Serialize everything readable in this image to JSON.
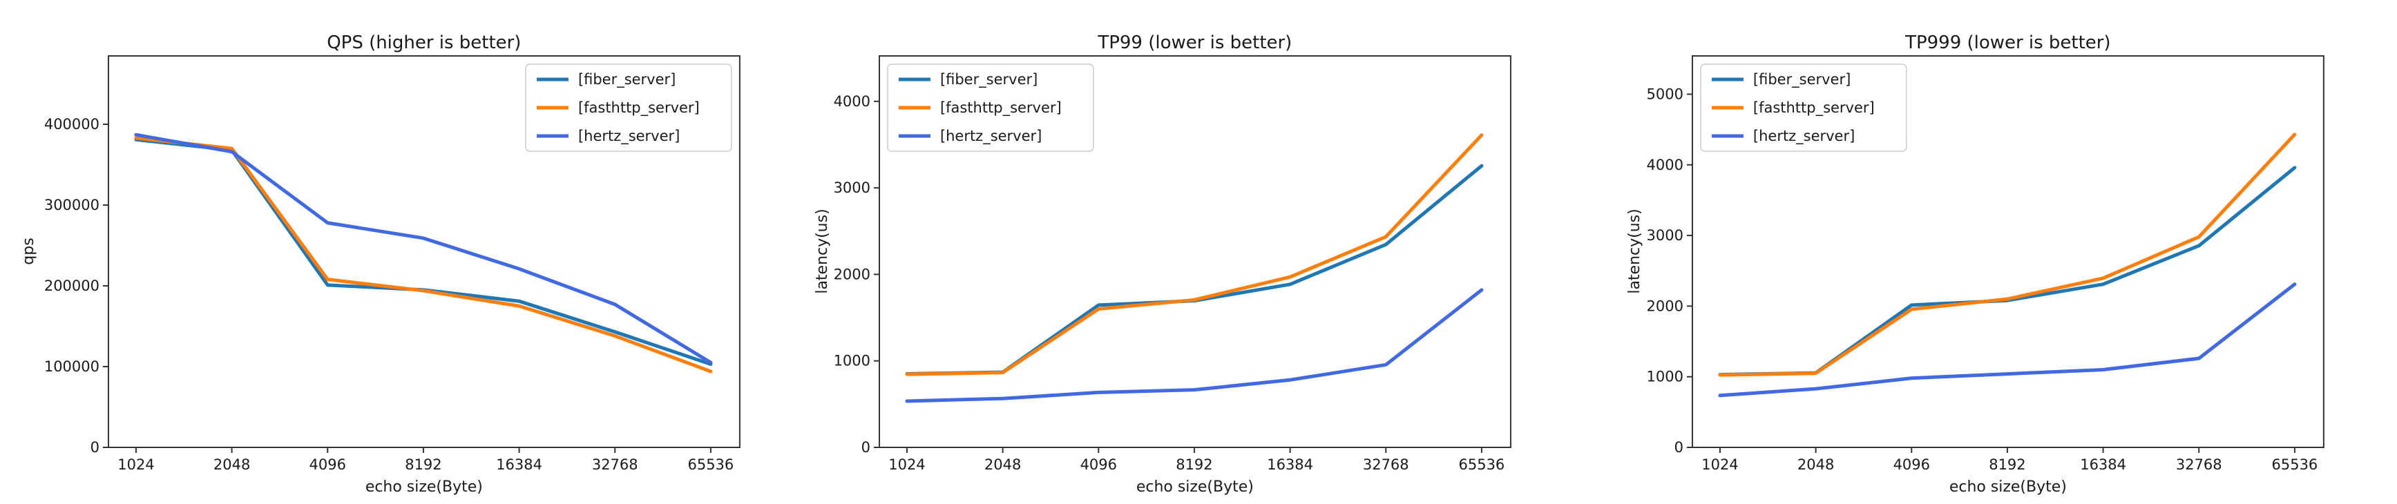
{
  "figure": {
    "background": "#ffffff"
  },
  "colors": {
    "fiber": "#1f77b4",
    "fasthttp": "#ff7f0e",
    "hertz": "#4169e1",
    "spine": "#333333",
    "text": "#1a1a1a",
    "legend_border": "#cccccc",
    "legend_fill": "#ffffff"
  },
  "chart_data": [
    {
      "type": "line",
      "title": "QPS (higher is better)",
      "xlabel": "echo size(Byte)",
      "ylabel": "qps",
      "categories": [
        "1024",
        "2048",
        "4096",
        "8192",
        "16384",
        "32768",
        "65536"
      ],
      "yticks": [
        0,
        100000,
        200000,
        300000,
        400000
      ],
      "ytick_labels": [
        "0",
        "100000",
        "200000",
        "300000",
        "400000"
      ],
      "ylim": [
        0,
        484600
      ],
      "grid": false,
      "legend_position": "upper-right",
      "series": [
        {
          "name": "[fiber_server]",
          "color_key": "fiber",
          "values": [
            381000,
            368000,
            201000,
            195000,
            181000,
            143000,
            103000
          ]
        },
        {
          "name": "[fasthttp_server]",
          "color_key": "fasthttp",
          "values": [
            383000,
            370000,
            208000,
            194000,
            175000,
            138000,
            94000
          ]
        },
        {
          "name": "[hertz_server]",
          "color_key": "hertz",
          "values": [
            387000,
            366000,
            278000,
            259000,
            221000,
            177000,
            105000
          ]
        }
      ]
    },
    {
      "type": "line",
      "title": "TP99 (lower is better)",
      "xlabel": "echo size(Byte)",
      "ylabel": "latency(us)",
      "categories": [
        "1024",
        "2048",
        "4096",
        "8192",
        "16384",
        "32768",
        "65536"
      ],
      "yticks": [
        0,
        1000,
        2000,
        3000,
        4000
      ],
      "ytick_labels": [
        "0",
        "1000",
        "2000",
        "3000",
        "4000"
      ],
      "ylim": [
        0,
        4525
      ],
      "grid": false,
      "legend_position": "upper-left",
      "series": [
        {
          "name": "[fiber_server]",
          "color_key": "fiber",
          "values": [
            850,
            870,
            1645,
            1695,
            1885,
            2345,
            3255
          ]
        },
        {
          "name": "[fasthttp_server]",
          "color_key": "fasthttp",
          "values": [
            845,
            865,
            1600,
            1705,
            1970,
            2435,
            3610
          ]
        },
        {
          "name": "[hertz_server]",
          "color_key": "hertz",
          "values": [
            535,
            565,
            635,
            665,
            780,
            955,
            1820
          ]
        }
      ]
    },
    {
      "type": "line",
      "title": "TP999 (lower is better)",
      "xlabel": "echo size(Byte)",
      "ylabel": "latency(us)",
      "categories": [
        "1024",
        "2048",
        "4096",
        "8192",
        "16384",
        "32768",
        "65536"
      ],
      "yticks": [
        0,
        1000,
        2000,
        3000,
        4000,
        5000
      ],
      "ytick_labels": [
        "0",
        "1000",
        "2000",
        "3000",
        "4000",
        "5000"
      ],
      "ylim": [
        0,
        5542
      ],
      "grid": false,
      "legend_position": "upper-left",
      "series": [
        {
          "name": "[fiber_server]",
          "color_key": "fiber",
          "values": [
            1030,
            1055,
            2015,
            2080,
            2310,
            2855,
            3960
          ]
        },
        {
          "name": "[fasthttp_server]",
          "color_key": "fasthttp",
          "values": [
            1025,
            1050,
            1955,
            2100,
            2395,
            2980,
            4430
          ]
        },
        {
          "name": "[hertz_server]",
          "color_key": "hertz",
          "values": [
            735,
            830,
            980,
            1040,
            1100,
            1260,
            2310
          ]
        }
      ]
    }
  ]
}
